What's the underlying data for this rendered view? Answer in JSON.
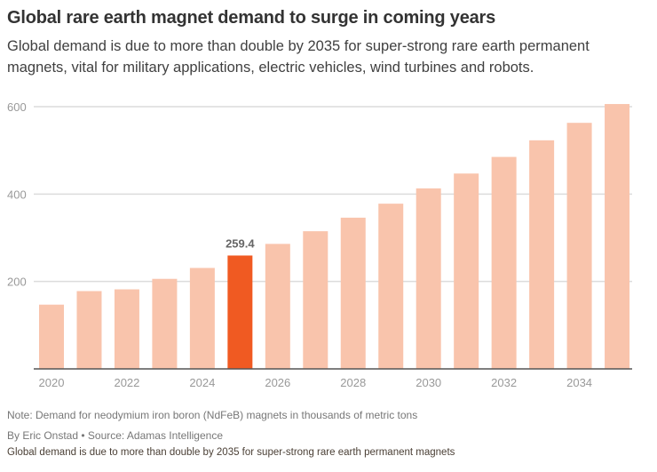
{
  "chart_data": {
    "type": "bar",
    "title": "Global rare earth magnet demand to surge in coming years",
    "subtitle": "Global demand is due to more than double by 2035 for super-strong rare earth permanent magnets, vital for military applications, electric vehicles, wind turbines and robots.",
    "categories": [
      "2020",
      "2021",
      "2022",
      "2023",
      "2024",
      "2025",
      "2026",
      "2027",
      "2028",
      "2029",
      "2030",
      "2031",
      "2032",
      "2033",
      "2034",
      "2035"
    ],
    "values": [
      147,
      178,
      182,
      206,
      231,
      259.4,
      286,
      315,
      346,
      378,
      413,
      447,
      485,
      523,
      563,
      606
    ],
    "highlight_index": 5,
    "highlight_label": "259.4",
    "xtick_labels": [
      "2020",
      "2022",
      "2024",
      "2026",
      "2028",
      "2030",
      "2032",
      "2034"
    ],
    "ytick_labels": [
      "200",
      "400",
      "600"
    ],
    "yticks": [
      200,
      400,
      600
    ],
    "ylim": [
      0,
      600
    ],
    "xlabel": "",
    "ylabel": "",
    "grid": true,
    "colors": {
      "bar": "#f9c4ac",
      "highlight": "#f05a22",
      "grid": "#dcdcdc",
      "axis": "#555555",
      "tick": "#999999",
      "label": "#666666"
    }
  },
  "footer": {
    "note": "Note: Demand for neodymium iron boron (NdFeB) magnets in thousands of metric tons",
    "byline": "By Eric Onstad • Source: Adamas Intelligence",
    "caption": "Global demand is due to more than double by 2035 for super-strong rare earth permanent magnets"
  }
}
